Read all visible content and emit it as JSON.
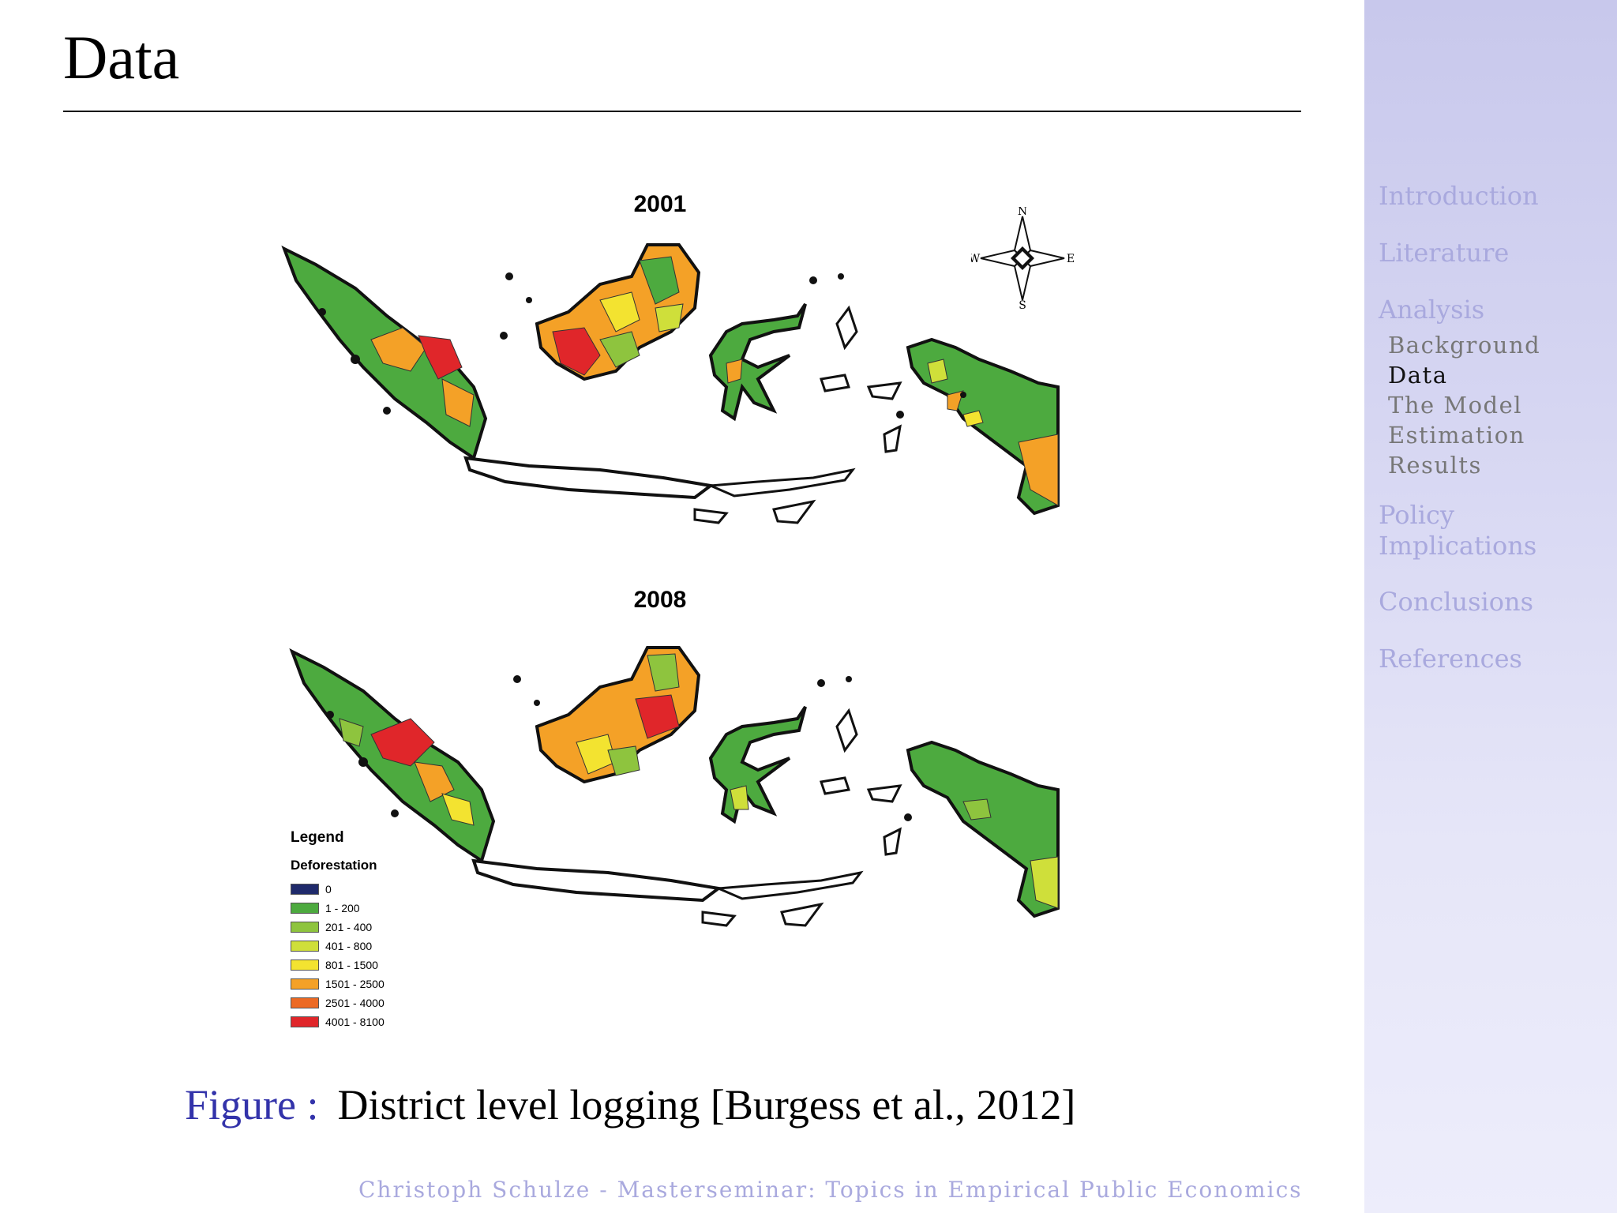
{
  "slide": {
    "title": "Data"
  },
  "nav": {
    "sections": [
      {
        "label": "Introduction"
      },
      {
        "label": "Literature"
      },
      {
        "label": "Analysis",
        "subsections": [
          "Background",
          "Data",
          "The Model",
          "Estimation",
          "Results"
        ]
      },
      {
        "label": "Policy"
      },
      {
        "label": "Implications"
      },
      {
        "label": "Conclusions"
      },
      {
        "label": "References"
      }
    ],
    "active_subsection": "Data"
  },
  "figure": {
    "map_2001_title": "2001",
    "map_2008_title": "2008",
    "compass": {
      "n": "N",
      "s": "S",
      "e": "E",
      "w": "W"
    },
    "legend": {
      "title": "Legend",
      "subtitle": "Deforestation",
      "items": [
        {
          "label": "0",
          "color": "#1f2a6b"
        },
        {
          "label": "1 - 200",
          "color": "#4daa3f"
        },
        {
          "label": "201 - 400",
          "color": "#8ec43e"
        },
        {
          "label": "401 - 800",
          "color": "#cfdf3a"
        },
        {
          "label": "801 - 1500",
          "color": "#f3e330"
        },
        {
          "label": "1501 - 2500",
          "color": "#f4a127"
        },
        {
          "label": "2501 - 4000",
          "color": "#ec6a24"
        },
        {
          "label": "4001 - 8100",
          "color": "#e0262a"
        }
      ]
    },
    "caption_label": "Figure :",
    "caption_text": "District level logging [Burgess et al., 2012]"
  },
  "footer": {
    "text": "Christoph Schulze - Masterseminar: Topics in Empirical Public Economics"
  }
}
